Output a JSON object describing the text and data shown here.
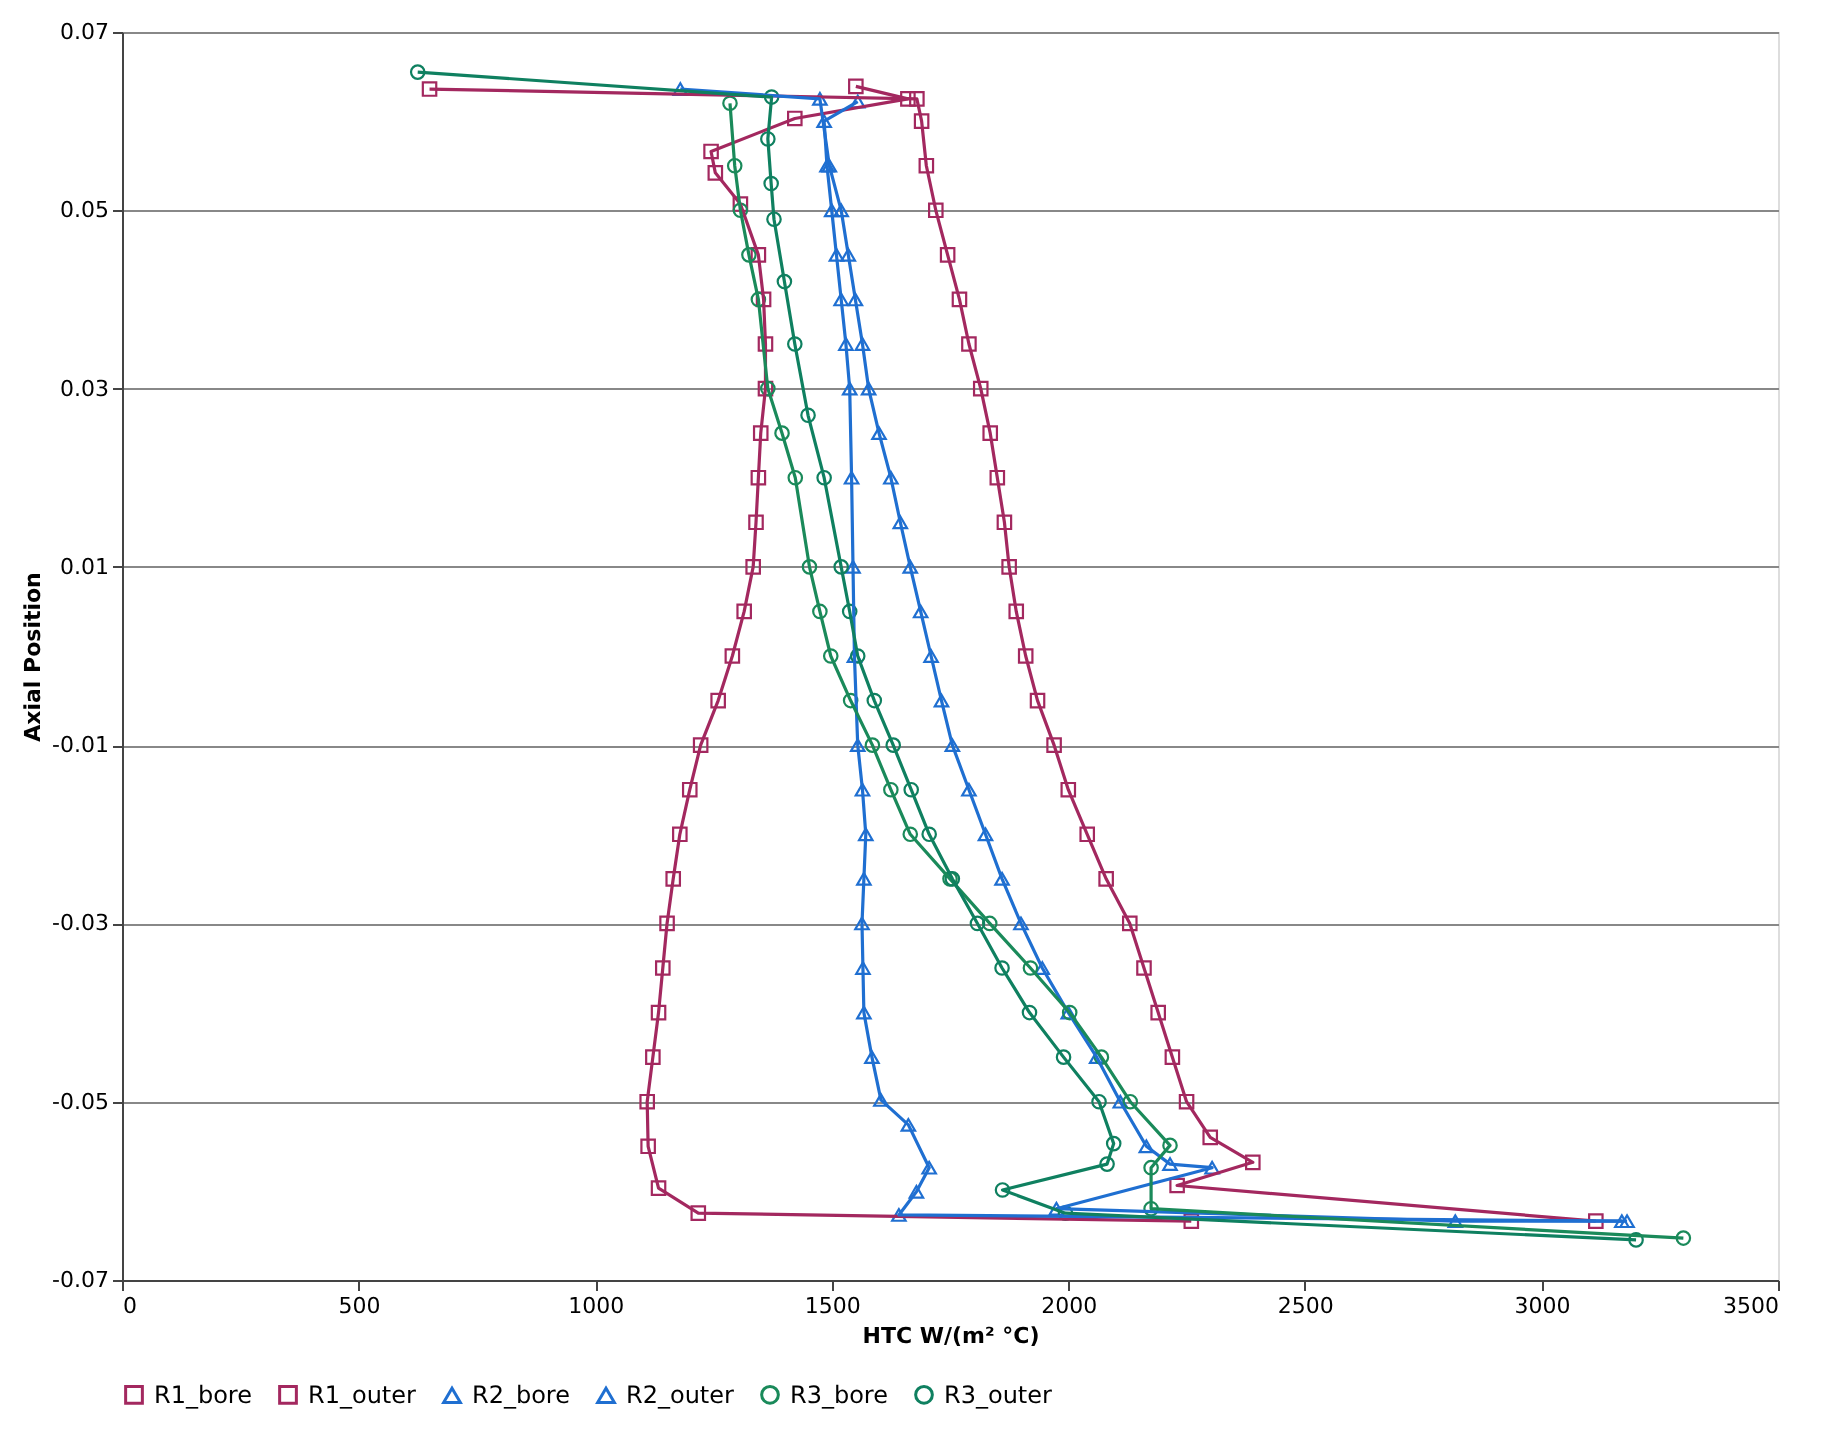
{
  "chart_data": {
    "type": "line",
    "xlabel": "HTC W/(m² °C)",
    "ylabel": "Axial Position",
    "xlim": [
      0,
      3500
    ],
    "xticks": [
      0,
      500,
      1000,
      1500,
      2000,
      2500,
      3000,
      3500
    ],
    "ylim": [
      -0.07,
      0.07
    ],
    "yticks": [
      -0.07,
      -0.05,
      -0.03,
      -0.01,
      0.01,
      0.03,
      0.05,
      0.07
    ],
    "grid": "y",
    "legend": "bottom",
    "series": [
      {
        "name": "R1_bore",
        "color": "#a3285f",
        "marker": "square",
        "line_style": "solid",
        "x": [
          650,
          1680,
          1690,
          1700,
          1720,
          1745,
          1770,
          1790,
          1815,
          1835,
          1850,
          1865,
          1875,
          1890,
          1910,
          1935,
          1970,
          2000,
          2040,
          2080,
          2130,
          2160,
          2190,
          2220,
          2250,
          2300,
          2390,
          2230,
          3115
        ],
        "values": [
          0.0636,
          0.0625,
          0.06,
          0.055,
          0.05,
          0.045,
          0.04,
          0.035,
          0.03,
          0.025,
          0.02,
          0.015,
          0.01,
          0.005,
          0.0,
          -0.005,
          -0.01,
          -0.015,
          -0.02,
          -0.025,
          -0.03,
          -0.035,
          -0.04,
          -0.045,
          -0.05,
          -0.054,
          -0.0568,
          -0.0594,
          -0.0634
        ]
      },
      {
        "name": "R1_outer",
        "color": "#a3285f",
        "marker": "square",
        "line_style": "solid",
        "x": [
          1551,
          1661,
          1422,
          1245,
          1254,
          1307,
          1345,
          1356,
          1360,
          1360,
          1350,
          1345,
          1340,
          1334,
          1315,
          1290,
          1260,
          1223,
          1200,
          1179,
          1165,
          1152,
          1143,
          1134,
          1122,
          1110,
          1112,
          1134,
          1218,
          2260
        ],
        "values": [
          0.0639,
          0.0625,
          0.0603,
          0.0566,
          0.0542,
          0.0507,
          0.045,
          0.04,
          0.035,
          0.03,
          0.025,
          0.02,
          0.015,
          0.01,
          0.005,
          0.0,
          -0.005,
          -0.01,
          -0.015,
          -0.02,
          -0.025,
          -0.03,
          -0.035,
          -0.04,
          -0.045,
          -0.05,
          -0.055,
          -0.0597,
          -0.0625,
          -0.0634
        ]
      },
      {
        "name": "R2_bore",
        "color": "#1f6fd1",
        "marker": "triangle",
        "line_style": "solid",
        "x": [
          1180,
          1475,
          1495,
          1520,
          1535,
          1550,
          1565,
          1578,
          1600,
          1625,
          1645,
          1666,
          1688,
          1710,
          1732,
          1755,
          1790,
          1825,
          1860,
          1900,
          1945,
          2000,
          2060,
          2110,
          2165,
          2215,
          2304,
          1975,
          2818,
          3170
        ],
        "values": [
          0.0636,
          0.0625,
          0.055,
          0.05,
          0.045,
          0.04,
          0.035,
          0.03,
          0.025,
          0.02,
          0.015,
          0.01,
          0.005,
          0.0,
          -0.005,
          -0.01,
          -0.015,
          -0.02,
          -0.025,
          -0.03,
          -0.035,
          -0.04,
          -0.045,
          -0.05,
          -0.055,
          -0.057,
          -0.0574,
          -0.062,
          -0.0634,
          -0.0634
        ]
      },
      {
        "name": "R2_outer",
        "color": "#1f6fd1",
        "marker": "triangle",
        "line_style": "solid",
        "x": [
          1555,
          1484,
          1490,
          1500,
          1510,
          1520,
          1530,
          1538,
          1542,
          1545,
          1548,
          1555,
          1565,
          1572,
          1568,
          1564,
          1566,
          1568,
          1585,
          1604,
          1662,
          1706,
          1679,
          1642,
          3181
        ],
        "values": [
          0.0622,
          0.06,
          0.055,
          0.05,
          0.045,
          0.04,
          0.035,
          0.03,
          0.02,
          0.01,
          0.0,
          -0.01,
          -0.015,
          -0.02,
          -0.025,
          -0.03,
          -0.035,
          -0.04,
          -0.045,
          -0.0498,
          -0.0526,
          -0.0574,
          -0.0601,
          -0.0627,
          -0.0634
        ]
      },
      {
        "name": "R3_bore",
        "color": "#1a8a5a",
        "marker": "circle",
        "line_style": "solid",
        "x": [
          1285,
          1295,
          1307,
          1325,
          1345,
          1365,
          1395,
          1423,
          1453,
          1475,
          1498,
          1540,
          1586,
          1625,
          1666,
          1750,
          1834,
          1920,
          2003,
          2070,
          2131,
          2215,
          2175,
          2175,
          3300
        ],
        "values": [
          0.062,
          0.055,
          0.05,
          0.045,
          0.04,
          0.03,
          0.025,
          0.02,
          0.01,
          0.005,
          0.0,
          -0.005,
          -0.01,
          -0.015,
          -0.02,
          -0.025,
          -0.03,
          -0.035,
          -0.04,
          -0.045,
          -0.05,
          -0.0549,
          -0.0574,
          -0.062,
          -0.0653
        ]
      },
      {
        "name": "R3_outer",
        "color": "#0f8060",
        "marker": "circle",
        "line_style": "solid",
        "x": [
          625,
          1373,
          1365,
          1372,
          1378,
          1400,
          1422,
          1450,
          1484,
          1520,
          1538,
          1555,
          1590,
          1630,
          1668,
          1706,
          1755,
          1808,
          1860,
          1918,
          1990,
          2065,
          2096,
          2082,
          1861,
          1994,
          3200
        ],
        "values": [
          0.0655,
          0.0627,
          0.058,
          0.053,
          0.049,
          0.042,
          0.035,
          0.027,
          0.02,
          0.01,
          0.005,
          0.0,
          -0.005,
          -0.01,
          -0.015,
          -0.02,
          -0.025,
          -0.03,
          -0.035,
          -0.04,
          -0.045,
          -0.05,
          -0.0547,
          -0.057,
          -0.0599,
          -0.0625,
          -0.0655
        ]
      }
    ]
  }
}
